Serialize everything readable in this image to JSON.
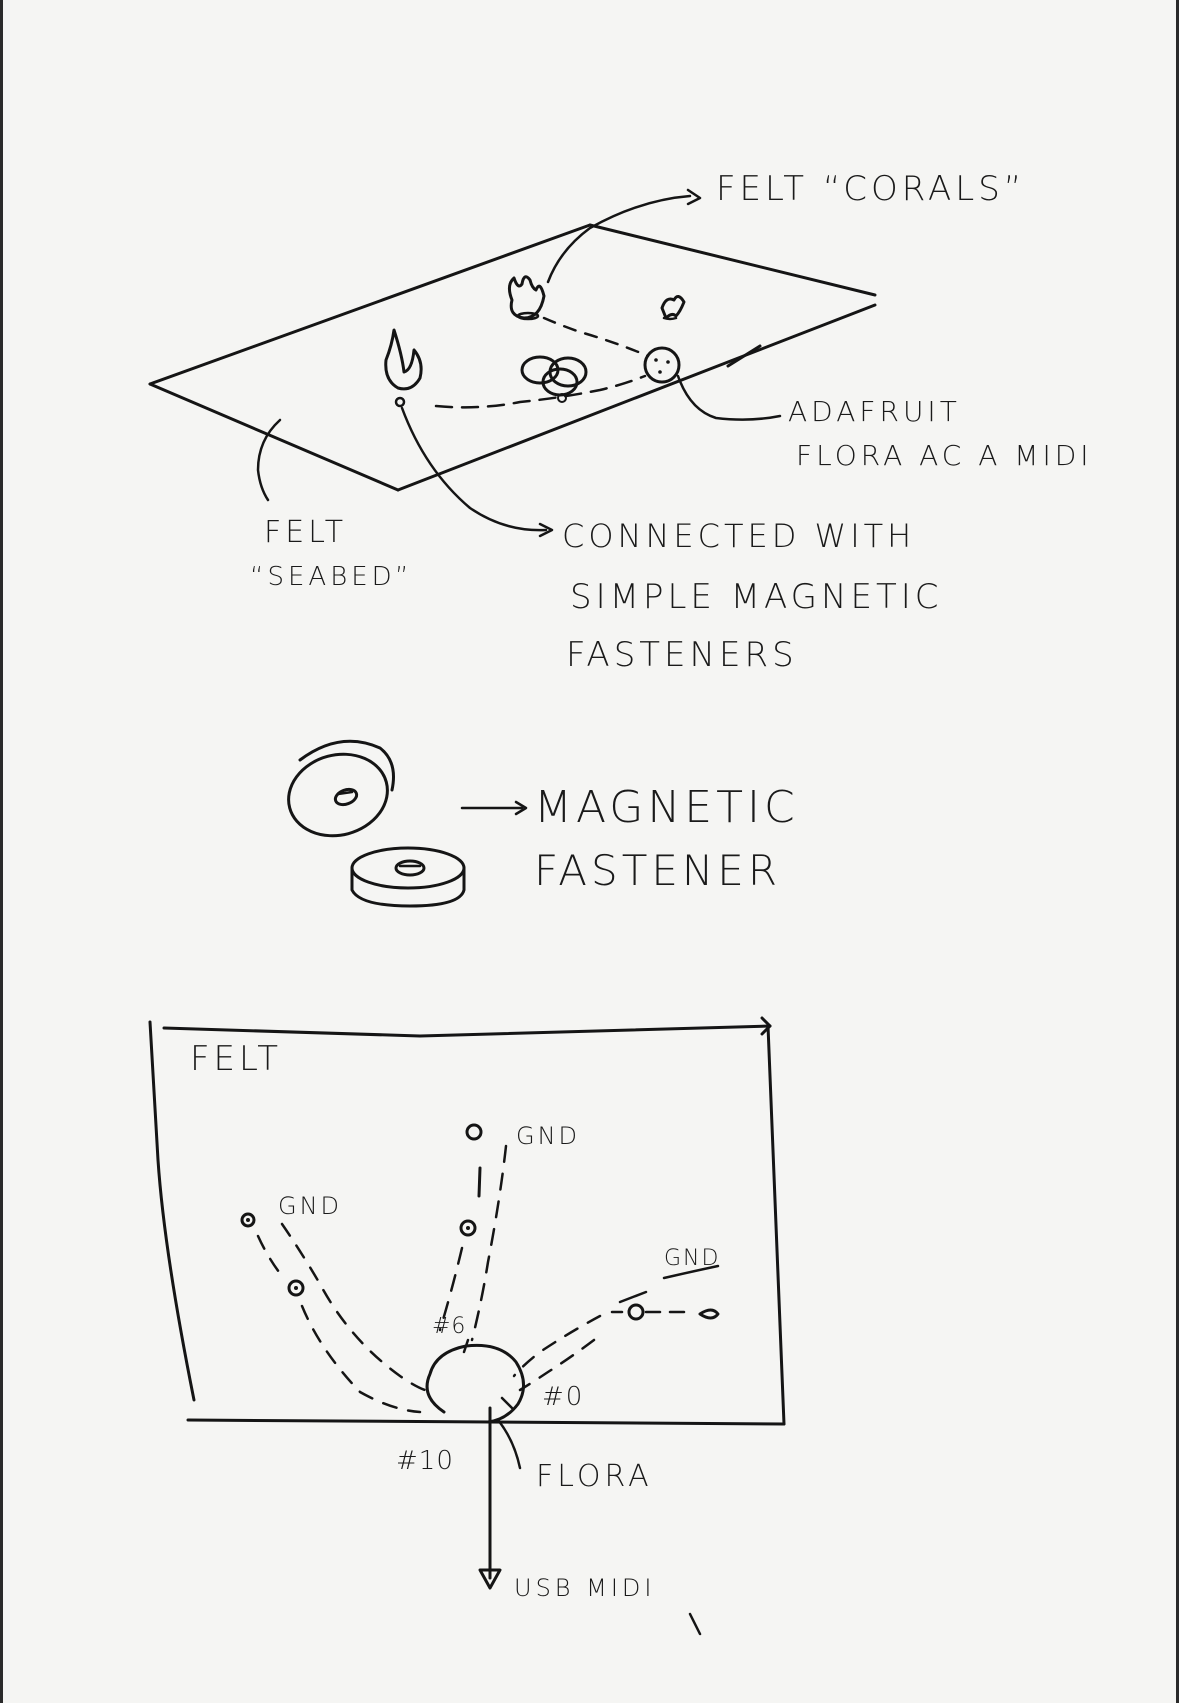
{
  "labels": {
    "felt_corals": "FELT “CORALS”",
    "adafruit_line1": "ADAFRUIT",
    "adafruit_line2": "FLORA AC A MIDI",
    "felt_seabed_line1": "FELT",
    "felt_seabed_line2": "“SEABED”",
    "connected_line1": "CONNECTED WITH",
    "connected_line2": "SIMPLE MAGNETIC",
    "connected_line3": "FASTENERS",
    "magnetic_line1": "MAGNETIC",
    "magnetic_line2": "FASTENER",
    "felt_box": "FELT",
    "gnd_top": "GND",
    "gnd_left": "GND",
    "gnd_right": "GND",
    "pin_6": "#6",
    "pin_0": "#0",
    "pin_10": "#10",
    "flora": "FLORA",
    "usb_midi": "USB MIDI"
  },
  "colors": {
    "ink": "#151515",
    "paper": "#f5f5f3"
  }
}
